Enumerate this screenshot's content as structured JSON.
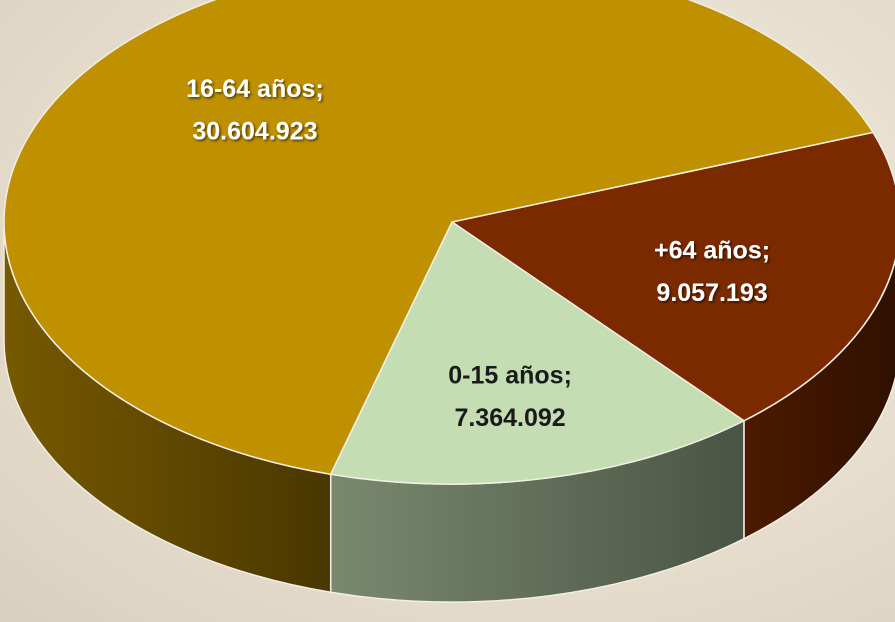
{
  "chart_data": {
    "type": "pie",
    "categories": [
      "+64 años;",
      "0-15 años;",
      "16-64 años;"
    ],
    "values": [
      9057193,
      7364092,
      30604923
    ],
    "value_labels": [
      "9.057.193",
      "7.364.092",
      "30.604.923"
    ],
    "colors": [
      "#7b2a00",
      "#c4ddb2",
      "#bf9000"
    ],
    "label_colors": [
      "#ffffff",
      "#1a1a1a",
      "#ffffff"
    ]
  }
}
